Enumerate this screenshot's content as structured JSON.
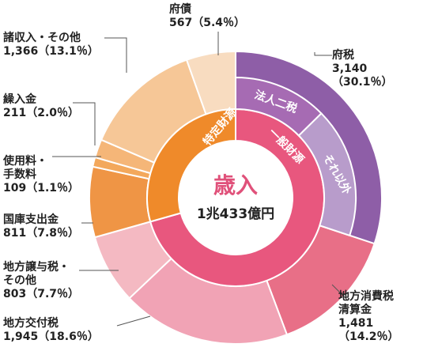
{
  "chart_data": {
    "type": "pie",
    "center": {
      "title": "歳入",
      "total_label": "1兆433億円"
    },
    "inner_ring": [
      {
        "label": "一般財源",
        "color": "#e8577e"
      },
      {
        "label": "特定財源",
        "color": "#ef8a2a"
      }
    ],
    "sub_ring": [
      {
        "label": "法人二税",
        "color": "#a66bb3"
      },
      {
        "label": "それ以外",
        "color": "#b89ccb"
      }
    ],
    "series": [
      {
        "name": "府税",
        "value": 3140,
        "percent": 30.1,
        "color": "#8e5ea7",
        "lines": [
          "府税",
          "3,140",
          "（30.1％）"
        ]
      },
      {
        "name": "地方消費税清算金",
        "value": 1481,
        "percent": 14.2,
        "color": "#e86f87",
        "lines": [
          "地方消費税",
          "清算金",
          "1,481",
          "（14.2％）"
        ]
      },
      {
        "name": "地方交付税",
        "value": 1945,
        "percent": 18.6,
        "color": "#f1a3b5",
        "lines": [
          "地方交付税",
          "1,945（18.6％）"
        ]
      },
      {
        "name": "地方譲与税・その他",
        "value": 803,
        "percent": 7.7,
        "color": "#f4b9c2",
        "lines": [
          "地方譲与税・",
          "その他",
          "803（7.7％）"
        ]
      },
      {
        "name": "国庫支出金",
        "value": 811,
        "percent": 7.8,
        "color": "#ef9545",
        "lines": [
          "国庫支出金",
          "811（7.8％）"
        ]
      },
      {
        "name": "使用料・手数料",
        "value": 109,
        "percent": 1.1,
        "color": "#f3a85c",
        "lines": [
          "使用料・",
          "手数料",
          "109（1.1％）"
        ]
      },
      {
        "name": "繰入金",
        "value": 211,
        "percent": 2.0,
        "color": "#f5b678",
        "lines": [
          "繰入金",
          "211（2.0％）"
        ]
      },
      {
        "name": "諸収入・その他",
        "value": 1366,
        "percent": 13.1,
        "color": "#f6c797",
        "lines": [
          "諸収入・その他",
          "1,366（13.1％）"
        ]
      },
      {
        "name": "府債",
        "value": 567,
        "percent": 5.4,
        "color": "#f8dcc0",
        "lines": [
          "府債",
          "567（5.4％）"
        ]
      }
    ]
  }
}
